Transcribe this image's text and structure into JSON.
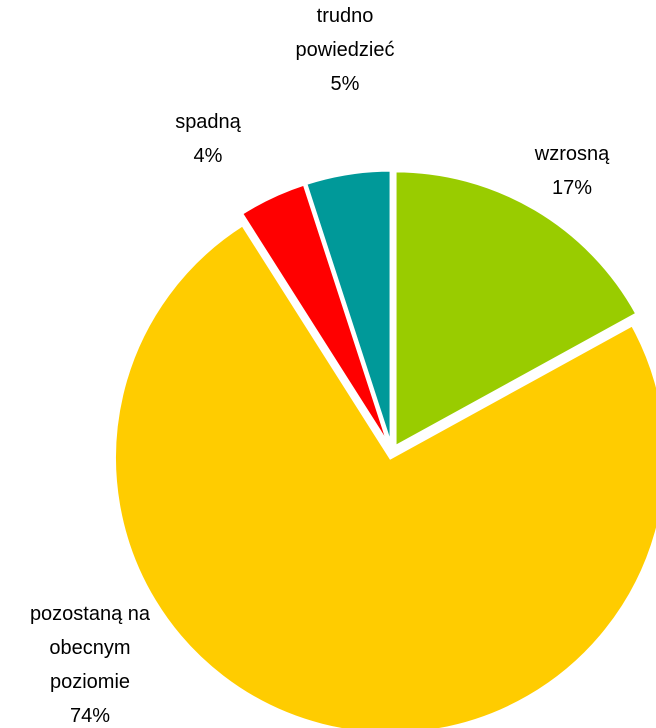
{
  "chart_data": {
    "type": "pie",
    "categories": [
      "wzrosną",
      "pozostaną na obecnym poziomie",
      "spadną",
      "trudno powiedzieć"
    ],
    "values": [
      17,
      74,
      4,
      5
    ],
    "value_labels": [
      "17%",
      "74%",
      "4%",
      "5%"
    ],
    "colors": [
      "#99cc00",
      "#ffcc00",
      "#ff0000",
      "#009999"
    ]
  }
}
